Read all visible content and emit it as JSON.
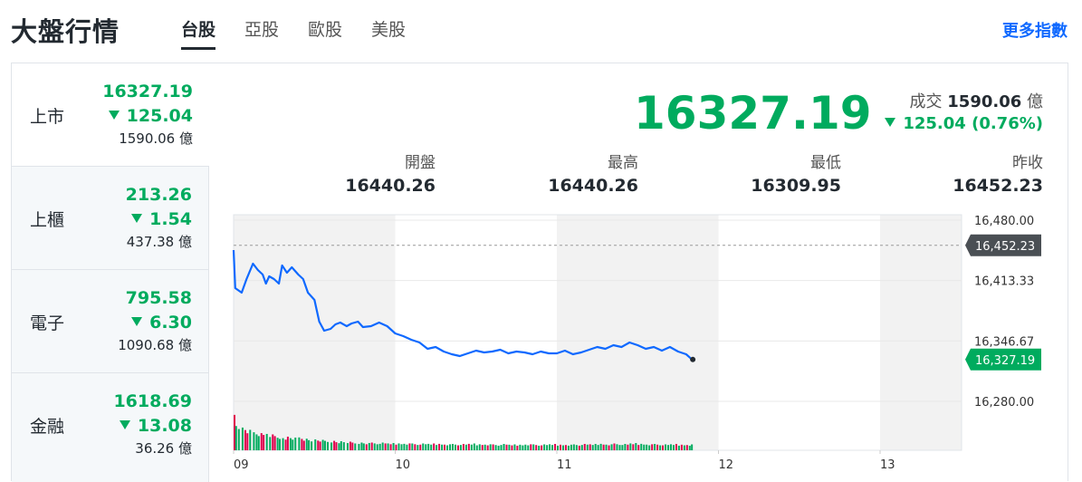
{
  "header": {
    "title": "大盤行情",
    "tabs": [
      "台股",
      "亞股",
      "歐股",
      "美股"
    ],
    "more_label": "更多指數"
  },
  "sidebar": {
    "items": [
      {
        "name": "上市",
        "price": "16327.19",
        "change": "125.04",
        "volume": "1590.06 億"
      },
      {
        "name": "上櫃",
        "price": "213.26",
        "change": "1.54",
        "volume": "437.38 億"
      },
      {
        "name": "電子",
        "price": "795.58",
        "change": "6.30",
        "volume": "1090.68 億"
      },
      {
        "name": "金融",
        "price": "1618.69",
        "change": "13.08",
        "volume": "36.26 億"
      }
    ]
  },
  "summary": {
    "price": "16327.19",
    "volume_label": "成交",
    "volume_value": "1590.06",
    "volume_unit": "億",
    "change": "125.04 (0.76%)"
  },
  "stats": [
    {
      "label": "開盤",
      "value": "16440.26"
    },
    {
      "label": "最高",
      "value": "16440.26"
    },
    {
      "label": "最低",
      "value": "16309.95"
    },
    {
      "label": "昨收",
      "value": "16452.23"
    }
  ],
  "colors": {
    "down": "#00ab5e",
    "up": "#e0004c",
    "line": "#0f69ff",
    "link": "#0f69ff"
  },
  "chart_data": {
    "type": "line",
    "x_ticks": [
      "09",
      "10",
      "11",
      "12",
      "13"
    ],
    "y_ticks": [
      "16,480.00",
      "16,413.33",
      "16,346.67",
      "16,280.00"
    ],
    "ylim": [
      16280,
      16480
    ],
    "prev_close_label": "16,452.23",
    "prev_close": 16452.23,
    "last_label": "16,327.19",
    "last": 16327.19,
    "x_hours": [
      9.0,
      9.01,
      9.05,
      9.08,
      9.12,
      9.15,
      9.18,
      9.2,
      9.22,
      9.25,
      9.28,
      9.3,
      9.33,
      9.36,
      9.4,
      9.43,
      9.46,
      9.5,
      9.53,
      9.56,
      9.6,
      9.63,
      9.66,
      9.7,
      9.73,
      9.77,
      9.8,
      9.85,
      9.9,
      9.95,
      10.0,
      10.05,
      10.1,
      10.15,
      10.2,
      10.25,
      10.3,
      10.35,
      10.4,
      10.45,
      10.5,
      10.55,
      10.6,
      10.65,
      10.7,
      10.75,
      10.8,
      10.85,
      10.9,
      10.95,
      11.0,
      11.05,
      11.1,
      11.15,
      11.2,
      11.25,
      11.3,
      11.35,
      11.4,
      11.45,
      11.5,
      11.55,
      11.6,
      11.65,
      11.7,
      11.75,
      11.8,
      11.83
    ],
    "values": [
      16447,
      16405,
      16400,
      16415,
      16432,
      16425,
      16420,
      16410,
      16418,
      16415,
      16410,
      16430,
      16422,
      16428,
      16420,
      16415,
      16400,
      16392,
      16368,
      16358,
      16360,
      16365,
      16367,
      16363,
      16366,
      16368,
      16362,
      16363,
      16367,
      16363,
      16355,
      16352,
      16348,
      16345,
      16338,
      16340,
      16335,
      16332,
      16330,
      16333,
      16336,
      16334,
      16335,
      16337,
      16333,
      16335,
      16334,
      16332,
      16335,
      16333,
      16333,
      16336,
      16332,
      16334,
      16337,
      16340,
      16338,
      16342,
      16340,
      16345,
      16342,
      16338,
      16340,
      16336,
      16340,
      16335,
      16332,
      16327.19
    ],
    "volume": [
      1.0,
      0.6,
      0.5,
      0.45,
      0.42,
      0.4,
      0.38,
      0.36,
      0.35,
      0.33,
      0.32,
      0.3,
      0.3,
      0.28,
      0.3,
      0.27,
      0.25,
      0.24,
      0.23,
      0.22,
      0.22,
      0.2,
      0.2,
      0.19,
      0.18,
      0.18,
      0.17,
      0.17,
      0.17,
      0.16,
      0.16,
      0.16,
      0.15,
      0.15,
      0.15,
      0.15,
      0.14,
      0.14,
      0.14,
      0.15,
      0.14,
      0.14,
      0.13,
      0.14,
      0.13,
      0.13,
      0.14,
      0.13,
      0.13,
      0.14,
      0.13,
      0.13,
      0.13,
      0.14,
      0.14,
      0.15,
      0.14,
      0.15,
      0.14,
      0.16,
      0.15,
      0.14,
      0.14,
      0.13,
      0.14,
      0.13,
      0.13,
      0.13
    ],
    "grid": true
  }
}
